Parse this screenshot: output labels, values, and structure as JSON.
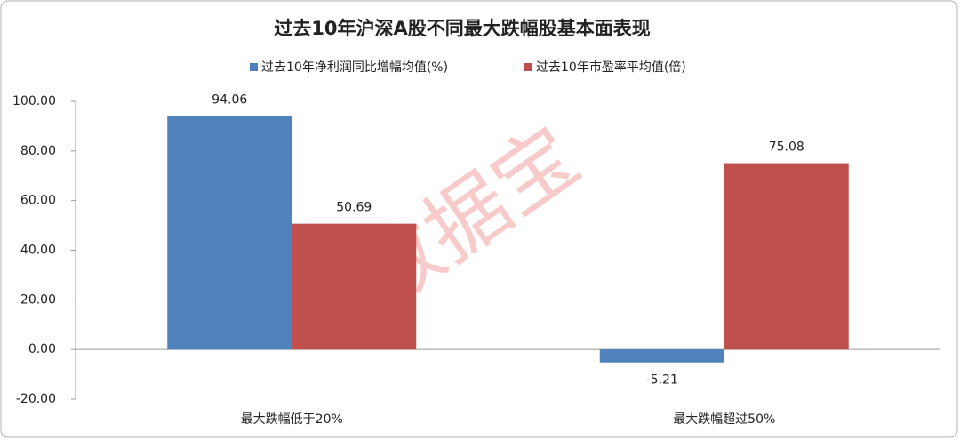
{
  "chart_data": {
    "type": "bar",
    "title": "过去10年沪深A股不同最大跌幅股基本面表现",
    "categories": [
      "最大跌幅低于20%",
      "最大跌幅超过50%"
    ],
    "series": [
      {
        "name": "过去10年净利润同比增幅均值(%)",
        "color": "#4f81bd",
        "values": [
          94.06,
          -5.21
        ]
      },
      {
        "name": "过去10年市盈率平均值(倍)",
        "color": "#c0504d",
        "values": [
          50.69,
          75.08
        ]
      }
    ],
    "ylim": [
      -20,
      100
    ],
    "yticks": [
      {
        "value": -20,
        "label": "-20.00"
      },
      {
        "value": 0,
        "label": "0.00"
      },
      {
        "value": 20,
        "label": "20.00"
      },
      {
        "value": 40,
        "label": "40.00"
      },
      {
        "value": 60,
        "label": "60.00"
      },
      {
        "value": 80,
        "label": "80.00"
      },
      {
        "value": 100,
        "label": "100.00"
      }
    ],
    "legend": "top",
    "watermark": "数据宝"
  }
}
